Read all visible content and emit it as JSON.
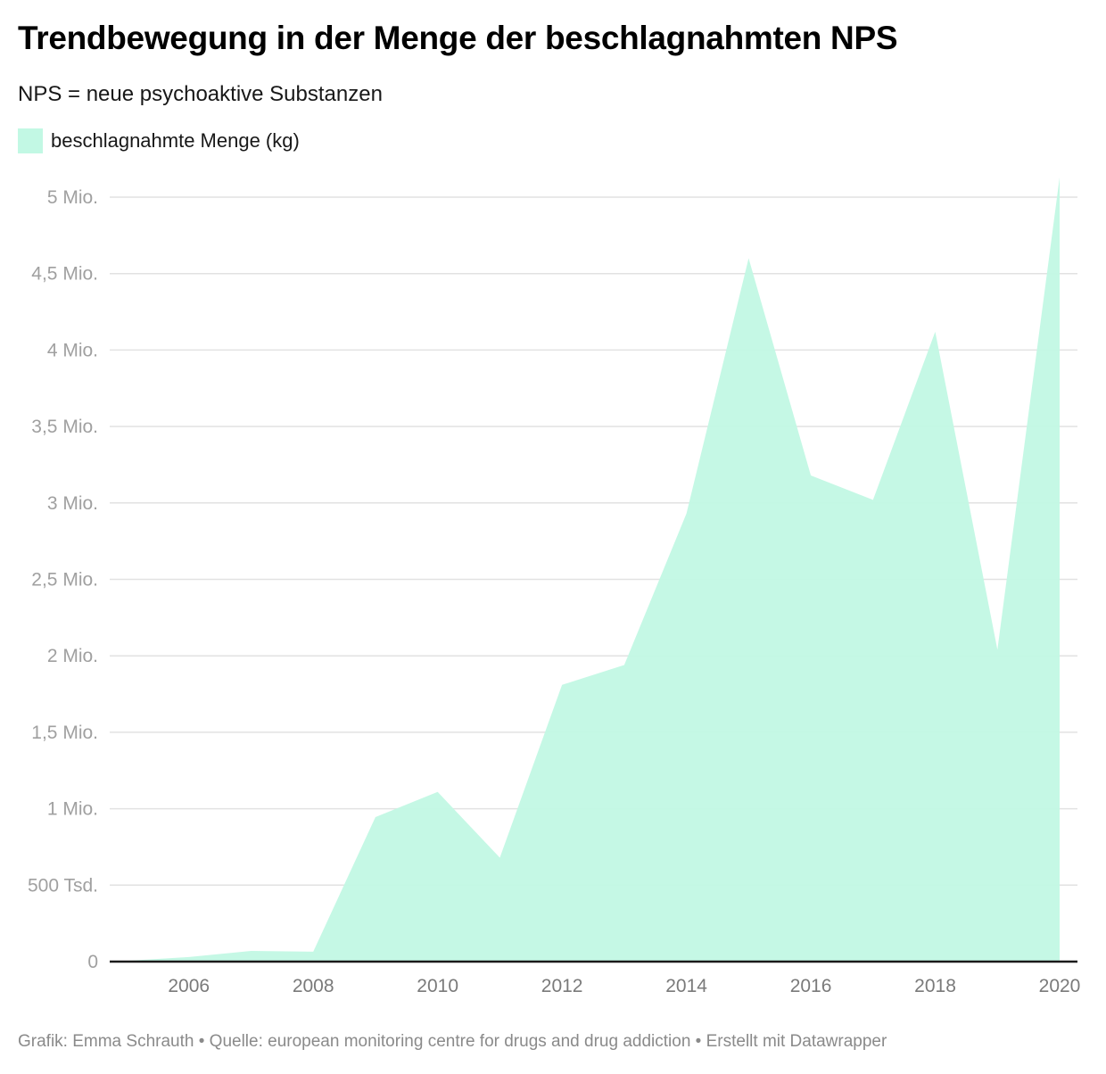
{
  "header": {
    "title": "Trendbewegung in der Menge der beschlagnahmten NPS",
    "subtitle": "NPS = neue psychoaktive Substanzen"
  },
  "legend": {
    "label": "beschlagnahmte Menge (kg)",
    "color": "#c2f8e4"
  },
  "footer": {
    "text": "Grafik: Emma Schrauth • Quelle: european monitoring centre for drugs and drug addiction • Erstellt mit Datawrapper"
  },
  "chart_data": {
    "type": "area",
    "title": "Trendbewegung in der Menge der beschlagnahmten NPS",
    "subtitle": "NPS = neue psychoaktive Substanzen",
    "xlabel": "",
    "ylabel": "",
    "x": [
      2005,
      2006,
      2007,
      2008,
      2009,
      2010,
      2011,
      2012,
      2013,
      2014,
      2015,
      2016,
      2017,
      2018,
      2019,
      2020
    ],
    "series": [
      {
        "name": "beschlagnahmte Menge (kg)",
        "color": "#c2f8e4",
        "values": [
          5000,
          30000,
          70000,
          65000,
          945000,
          1110000,
          680000,
          1810000,
          1940000,
          2930000,
          4600000,
          3180000,
          3020000,
          4120000,
          2040000,
          5130000
        ]
      }
    ],
    "xlim": [
      2005,
      2020
    ],
    "ylim": [
      0,
      5000000
    ],
    "x_ticks": [
      2006,
      2008,
      2010,
      2012,
      2014,
      2016,
      2018,
      2020
    ],
    "x_tick_labels": [
      "2006",
      "2008",
      "2010",
      "2012",
      "2014",
      "2016",
      "2018",
      "2020"
    ],
    "y_ticks": [
      0,
      500000,
      1000000,
      1500000,
      2000000,
      2500000,
      3000000,
      3500000,
      4000000,
      4500000,
      5000000
    ],
    "y_tick_labels": [
      "0",
      "500 Tsd.",
      "1 Mio.",
      "1,5 Mio.",
      "2 Mio.",
      "2,5 Mio.",
      "3 Mio.",
      "3,5 Mio.",
      "4 Mio.",
      "4,5 Mio.",
      "5 Mio."
    ],
    "grid": true,
    "legend_position": "top-left"
  }
}
